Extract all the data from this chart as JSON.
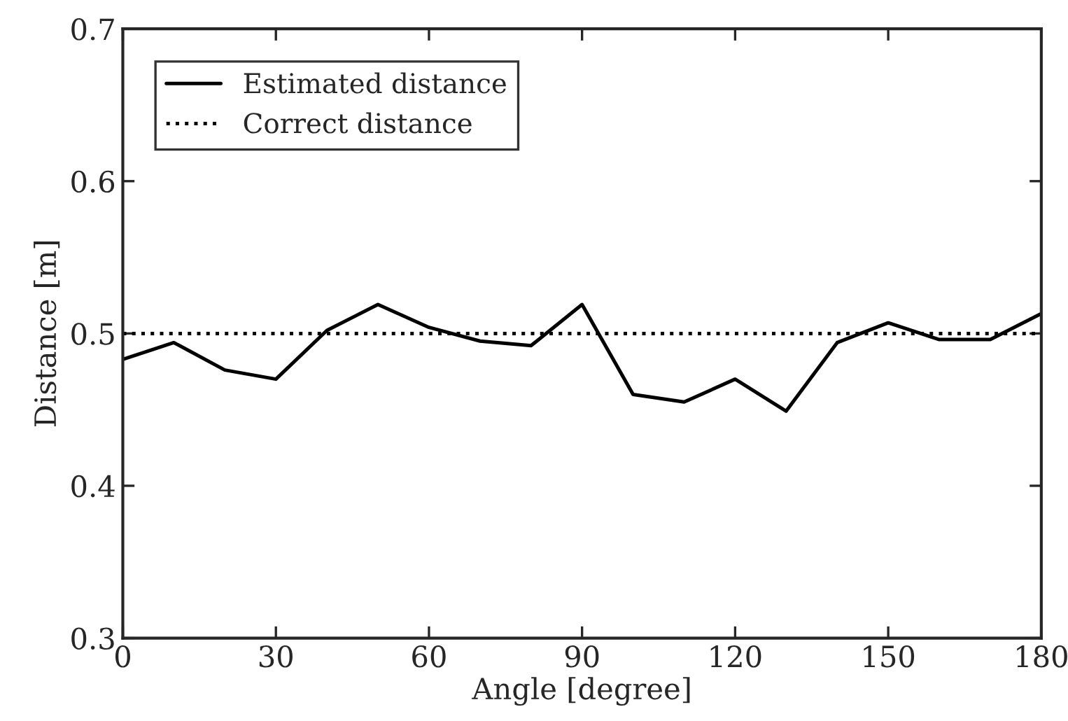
{
  "chart_data": {
    "type": "line",
    "xlabel": "Angle [degree]",
    "ylabel": "Distance [m]",
    "x": [
      0,
      10,
      20,
      30,
      40,
      50,
      60,
      70,
      80,
      90,
      100,
      110,
      120,
      130,
      140,
      150,
      160,
      170,
      180
    ],
    "series": [
      {
        "name": "Estimated distance",
        "color": "#000000",
        "line_style": "solid",
        "values": [
          0.483,
          0.494,
          0.476,
          0.47,
          0.502,
          0.519,
          0.504,
          0.495,
          0.492,
          0.519,
          0.46,
          0.455,
          0.47,
          0.449,
          0.494,
          0.507,
          0.496,
          0.496,
          0.513
        ]
      },
      {
        "name": "Correct distance",
        "color": "#000000",
        "line_style": "dotted",
        "values": [
          0.5,
          0.5,
          0.5,
          0.5,
          0.5,
          0.5,
          0.5,
          0.5,
          0.5,
          0.5,
          0.5,
          0.5,
          0.5,
          0.5,
          0.5,
          0.5,
          0.5,
          0.5,
          0.5
        ]
      }
    ],
    "xlim": [
      0,
      180
    ],
    "xticks": [
      0,
      30,
      60,
      90,
      120,
      150,
      180
    ],
    "ylim": [
      0.3,
      0.7
    ],
    "yticks": [
      0.3,
      0.4,
      0.5,
      0.6,
      0.7
    ],
    "legend": "top left",
    "grid": false,
    "marker": "none"
  }
}
